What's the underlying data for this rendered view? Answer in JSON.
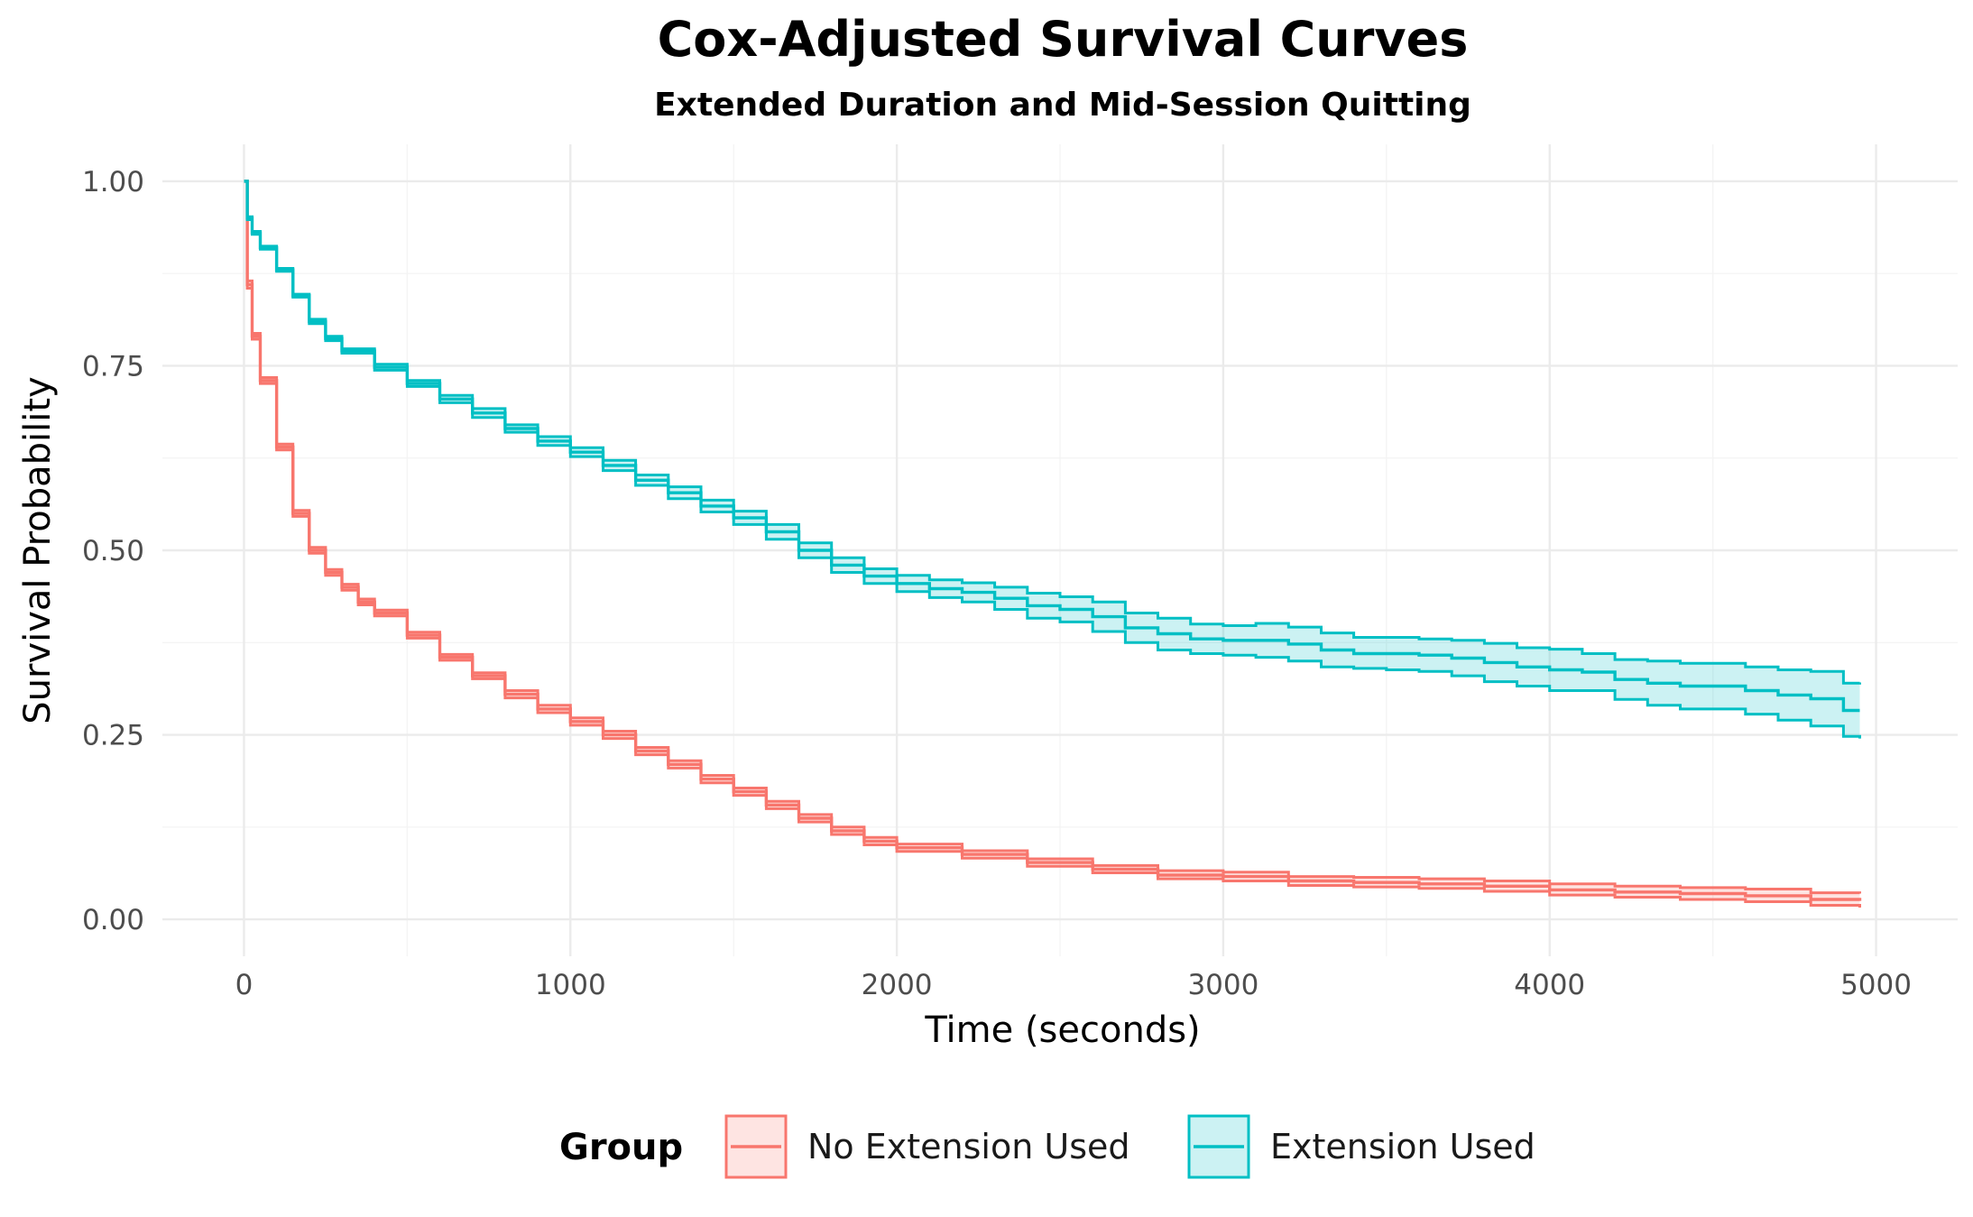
{
  "chart_data": {
    "type": "line",
    "title": "Cox-Adjusted Survival Curves",
    "subtitle": "Extended Duration and Mid-Session Quitting",
    "xlabel": "Time (seconds)",
    "ylabel": "Survival Probability",
    "xlim": [
      -250,
      5250
    ],
    "ylim": [
      -0.05,
      1.05
    ],
    "x_ticks": [
      0,
      1000,
      2000,
      3000,
      4000,
      5000
    ],
    "x_tick_labels": [
      "0",
      "1000",
      "2000",
      "3000",
      "4000",
      "5000"
    ],
    "y_ticks": [
      0,
      0.25,
      0.5,
      0.75,
      1.0
    ],
    "y_tick_labels": [
      "0.00",
      "0.25",
      "0.50",
      "0.75",
      "1.00"
    ],
    "grid": true,
    "legend": {
      "title": "Group",
      "position": "bottom"
    },
    "series": [
      {
        "name": "No Extension Used",
        "color": "#F8766D",
        "x": [
          0,
          10,
          25,
          50,
          100,
          150,
          200,
          250,
          300,
          350,
          400,
          500,
          600,
          700,
          800,
          900,
          1000,
          1100,
          1200,
          1300,
          1400,
          1500,
          1600,
          1700,
          1800,
          1900,
          2000,
          2200,
          2400,
          2600,
          2800,
          3000,
          3200,
          3400,
          3600,
          3800,
          4000,
          4200,
          4400,
          4600,
          4800,
          4950
        ],
        "estimate": [
          1.0,
          0.86,
          0.79,
          0.73,
          0.64,
          0.55,
          0.5,
          0.47,
          0.45,
          0.43,
          0.415,
          0.385,
          0.355,
          0.33,
          0.305,
          0.285,
          0.268,
          0.25,
          0.228,
          0.21,
          0.19,
          0.173,
          0.155,
          0.137,
          0.12,
          0.106,
          0.097,
          0.088,
          0.077,
          0.068,
          0.06,
          0.058,
          0.052,
          0.05,
          0.048,
          0.045,
          0.04,
          0.037,
          0.035,
          0.032,
          0.027,
          0.025
        ],
        "lower": [
          1.0,
          0.855,
          0.786,
          0.726,
          0.636,
          0.546,
          0.496,
          0.466,
          0.446,
          0.426,
          0.411,
          0.381,
          0.351,
          0.326,
          0.3,
          0.28,
          0.263,
          0.245,
          0.223,
          0.205,
          0.185,
          0.168,
          0.15,
          0.132,
          0.115,
          0.101,
          0.092,
          0.083,
          0.072,
          0.063,
          0.055,
          0.052,
          0.046,
          0.044,
          0.042,
          0.038,
          0.033,
          0.03,
          0.027,
          0.024,
          0.019,
          0.016
        ],
        "upper": [
          1.0,
          0.865,
          0.794,
          0.734,
          0.644,
          0.554,
          0.504,
          0.474,
          0.454,
          0.434,
          0.419,
          0.389,
          0.359,
          0.334,
          0.31,
          0.29,
          0.273,
          0.255,
          0.233,
          0.215,
          0.195,
          0.178,
          0.16,
          0.142,
          0.125,
          0.111,
          0.102,
          0.093,
          0.082,
          0.073,
          0.066,
          0.064,
          0.058,
          0.057,
          0.055,
          0.052,
          0.048,
          0.045,
          0.043,
          0.041,
          0.036,
          0.035
        ]
      },
      {
        "name": "Extension Used",
        "color": "#00BFC4",
        "x": [
          0,
          10,
          25,
          50,
          100,
          150,
          200,
          250,
          300,
          400,
          500,
          600,
          700,
          800,
          900,
          1000,
          1100,
          1200,
          1300,
          1400,
          1500,
          1600,
          1700,
          1800,
          1900,
          2000,
          2100,
          2200,
          2300,
          2400,
          2500,
          2600,
          2700,
          2800,
          2900,
          3000,
          3100,
          3200,
          3300,
          3400,
          3500,
          3600,
          3700,
          3800,
          3900,
          4000,
          4100,
          4200,
          4300,
          4400,
          4500,
          4600,
          4700,
          4800,
          4900,
          4950
        ],
        "estimate": [
          1.0,
          0.95,
          0.93,
          0.91,
          0.88,
          0.845,
          0.81,
          0.787,
          0.77,
          0.748,
          0.726,
          0.705,
          0.686,
          0.665,
          0.648,
          0.633,
          0.615,
          0.595,
          0.578,
          0.56,
          0.544,
          0.525,
          0.5,
          0.48,
          0.465,
          0.455,
          0.448,
          0.443,
          0.435,
          0.425,
          0.42,
          0.41,
          0.395,
          0.387,
          0.38,
          0.378,
          0.378,
          0.373,
          0.365,
          0.36,
          0.36,
          0.358,
          0.354,
          0.348,
          0.342,
          0.338,
          0.335,
          0.325,
          0.32,
          0.316,
          0.316,
          0.31,
          0.304,
          0.299,
          0.283,
          0.283
        ],
        "lower": [
          1.0,
          0.948,
          0.928,
          0.908,
          0.878,
          0.843,
          0.807,
          0.784,
          0.767,
          0.744,
          0.722,
          0.7,
          0.68,
          0.66,
          0.642,
          0.627,
          0.608,
          0.588,
          0.57,
          0.552,
          0.535,
          0.515,
          0.49,
          0.47,
          0.455,
          0.444,
          0.436,
          0.43,
          0.42,
          0.408,
          0.403,
          0.39,
          0.375,
          0.365,
          0.36,
          0.358,
          0.355,
          0.35,
          0.342,
          0.34,
          0.338,
          0.336,
          0.33,
          0.322,
          0.316,
          0.31,
          0.31,
          0.298,
          0.29,
          0.285,
          0.285,
          0.278,
          0.27,
          0.262,
          0.248,
          0.245
        ],
        "upper": [
          1.0,
          0.952,
          0.932,
          0.912,
          0.882,
          0.847,
          0.813,
          0.79,
          0.773,
          0.752,
          0.73,
          0.71,
          0.692,
          0.67,
          0.654,
          0.639,
          0.622,
          0.602,
          0.586,
          0.568,
          0.553,
          0.535,
          0.51,
          0.49,
          0.475,
          0.466,
          0.46,
          0.456,
          0.45,
          0.442,
          0.437,
          0.43,
          0.415,
          0.408,
          0.4,
          0.398,
          0.401,
          0.396,
          0.388,
          0.382,
          0.382,
          0.38,
          0.378,
          0.374,
          0.368,
          0.366,
          0.36,
          0.352,
          0.35,
          0.347,
          0.347,
          0.342,
          0.338,
          0.336,
          0.32,
          0.321
        ]
      }
    ]
  }
}
